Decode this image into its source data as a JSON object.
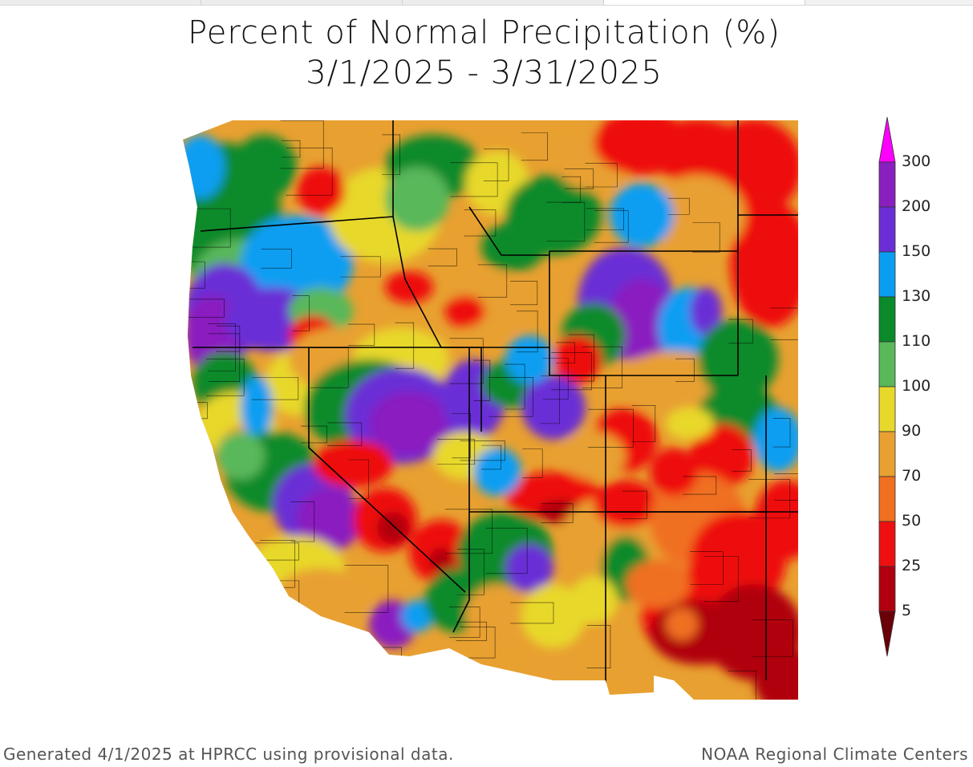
{
  "title": {
    "line1": "Percent of Normal Precipitation (%)",
    "line2": "3/1/2025 - 3/31/2025"
  },
  "legend": {
    "bins": [
      {
        "label": "300",
        "color": "#ff00ff"
      },
      {
        "label": "200",
        "color": "#8a1fc0"
      },
      {
        "label": "150",
        "color": "#6a2dd6"
      },
      {
        "label": "130",
        "color": "#0a9ef2"
      },
      {
        "label": "110",
        "color": "#0a8a2a"
      },
      {
        "label": "100",
        "color": "#58b85a"
      },
      {
        "label": "90",
        "color": "#e8d82c"
      },
      {
        "label": "70",
        "color": "#e8a030"
      },
      {
        "label": "50",
        "color": "#f07020"
      },
      {
        "label": "25",
        "color": "#ee1010"
      },
      {
        "label": "5",
        "color": "#b00010"
      }
    ],
    "bottom_color": "#6a0008"
  },
  "footer": {
    "left": "Generated 4/1/2025 at HPRCC using provisional data.",
    "right": "NOAA Regional Climate Centers"
  },
  "colors": {
    "p300": "#ff00ff",
    "p200": "#8a1fc0",
    "p150": "#6a2dd6",
    "p130": "#0a9ef2",
    "p110": "#0a8a2a",
    "p100": "#58b85a",
    "p90": "#e8d82c",
    "p70": "#e8a030",
    "p50": "#f07020",
    "p25": "#ee1010",
    "p5": "#b00010",
    "p0": "#6a0008"
  }
}
